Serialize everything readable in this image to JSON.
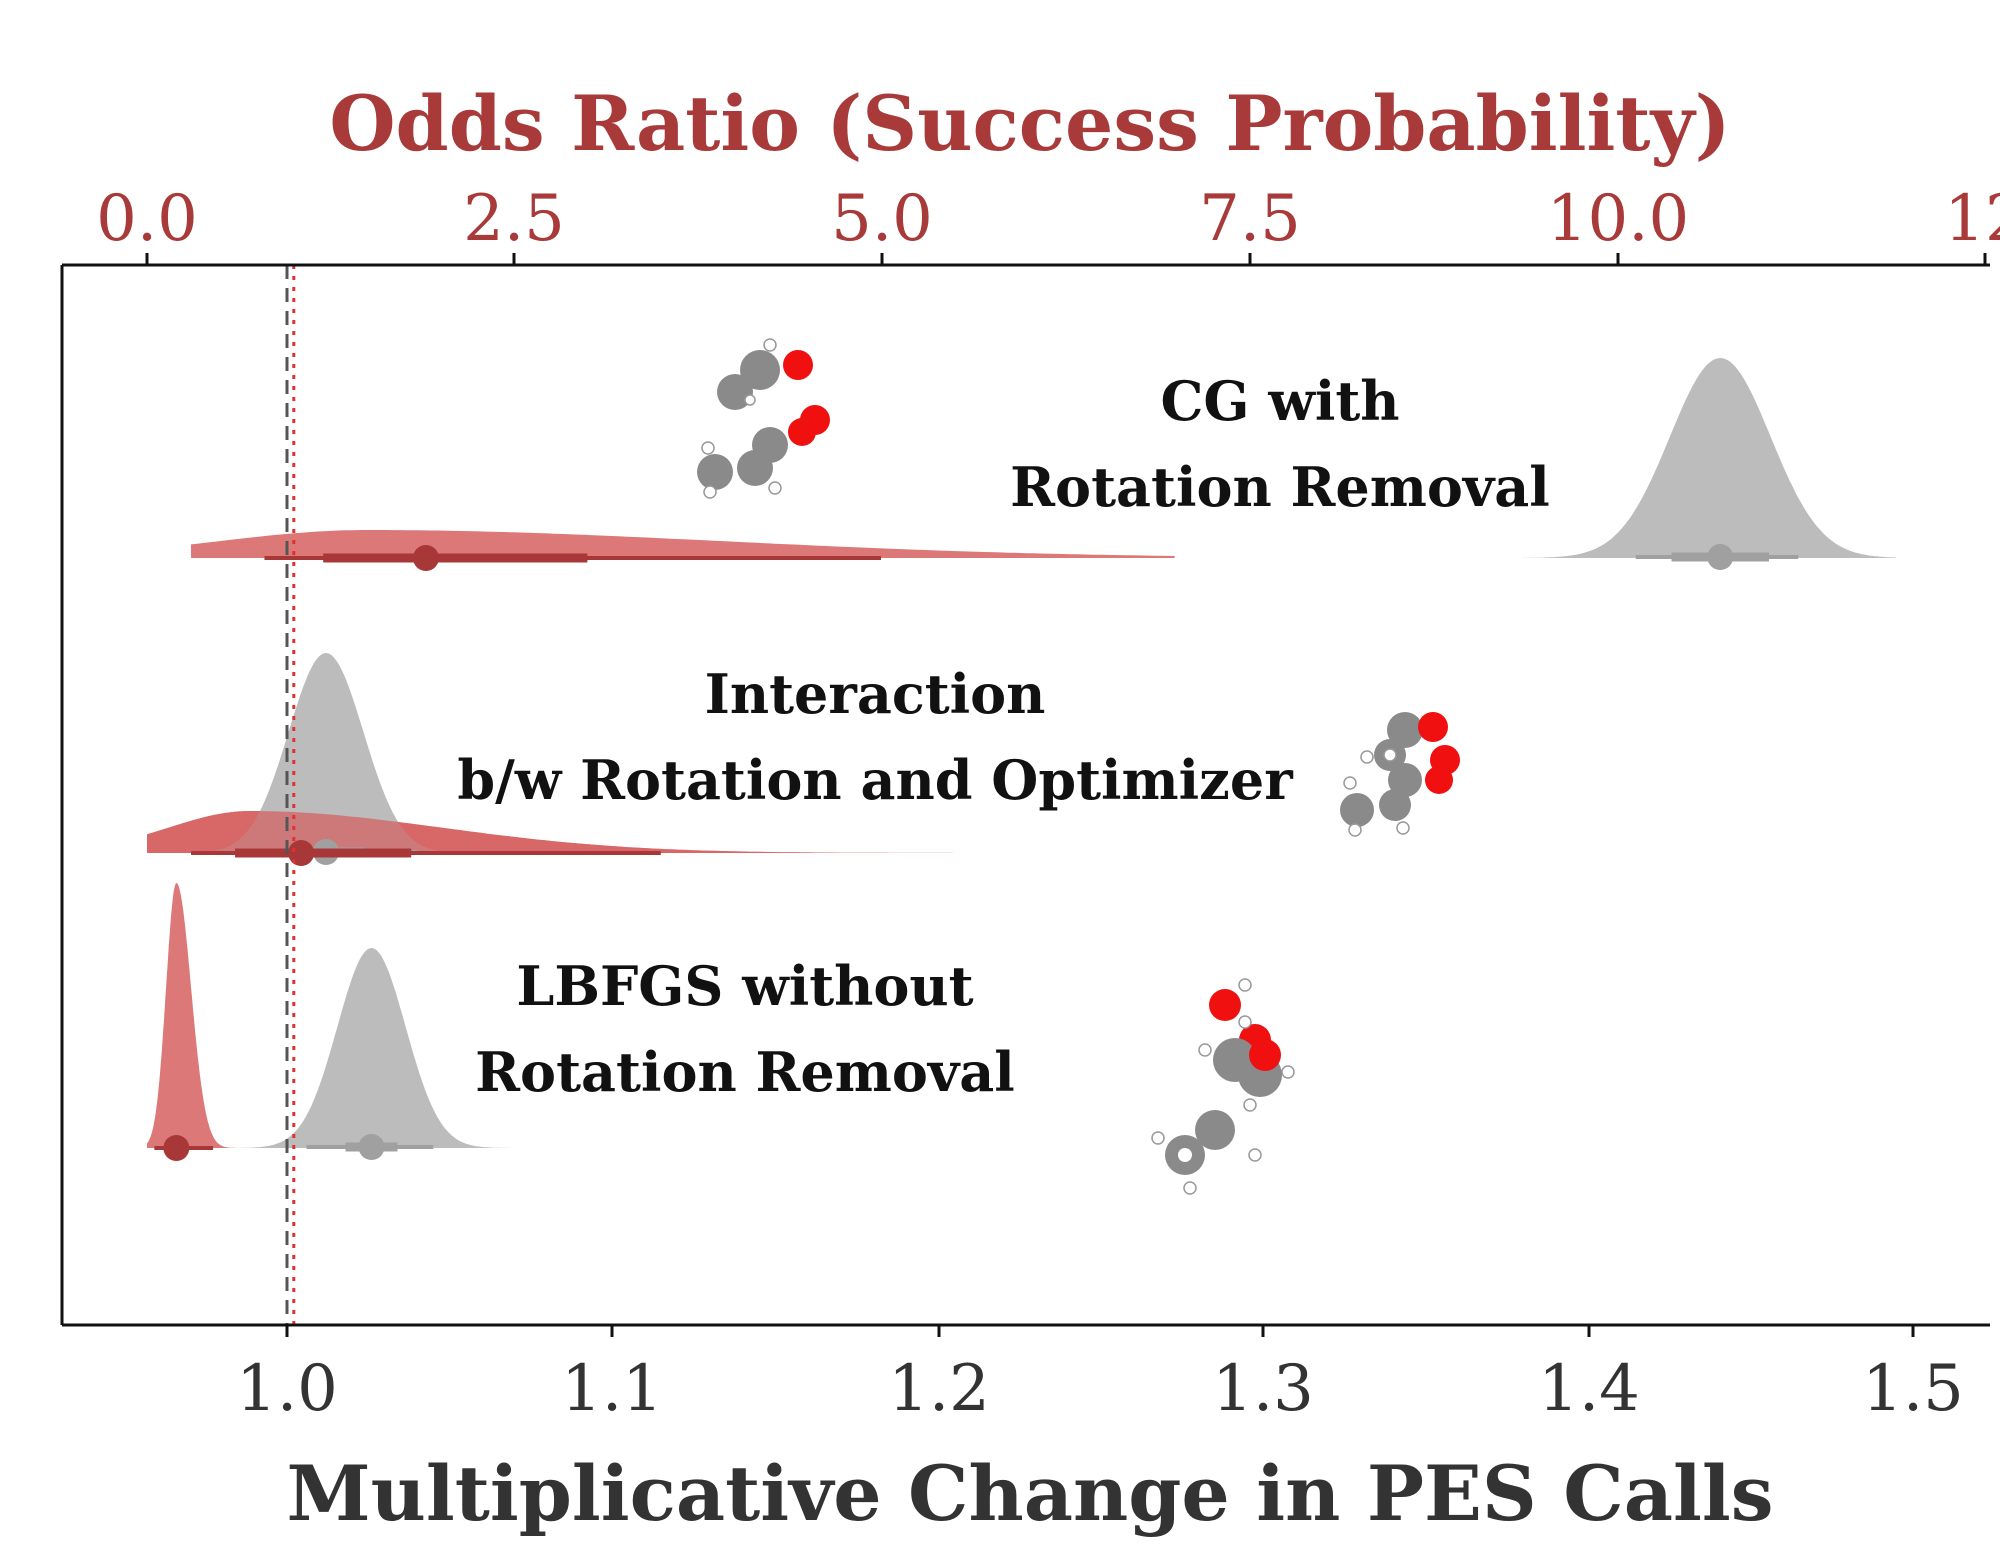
{
  "chart_data": {
    "type": "density-interval (raincloud / halfeye) plot",
    "top_axis": {
      "label": "Odds Ratio (Success Probability)",
      "ticks": [
        "0.0",
        "2.5",
        "5.0",
        "7.5",
        "10.0",
        "12"
      ],
      "range": [
        -0.5,
        12.0
      ],
      "color": "#a83a3a",
      "reference_line": 1.0
    },
    "bottom_axis": {
      "label": "Multiplicative Change in PES Calls",
      "ticks": [
        "1.0",
        "1.1",
        "1.2",
        "1.3",
        "1.4",
        "1.5"
      ],
      "range": [
        0.93,
        1.525
      ],
      "color": "#333333",
      "reference_line": 1.0
    },
    "series": [
      {
        "name": "PES calls (multiplicative change)",
        "color": "#b8b8b8",
        "axis": "bottom"
      },
      {
        "name": "Odds ratio (success probability)",
        "color": "#d66060",
        "axis": "top"
      }
    ],
    "rows": [
      {
        "label_lines": [
          "CG with",
          "Rotation Removal"
        ],
        "pes": {
          "median": 1.441,
          "sd": 0.0155,
          "hdi66": [
            1.426,
            1.456
          ],
          "hdi95": [
            1.415,
            1.465
          ],
          "tail": [
            1.38,
            1.495
          ]
        },
        "odds": {
          "median": 1.9,
          "mode": 1.5,
          "sdl": 1.0,
          "sdr": 2.4,
          "hdi66": [
            1.2,
            3.0
          ],
          "hdi95": [
            0.8,
            5.0
          ],
          "tail": [
            0.3,
            7.0
          ]
        }
      },
      {
        "label_lines": [
          "Interaction",
          "b/w Rotation and Optimizer"
        ],
        "pes": {
          "median": 1.012,
          "sd": 0.0115,
          "hdi66": [
            1.0,
            1.024
          ],
          "hdi95": [
            0.992,
            1.04
          ],
          "tail": [
            0.965,
            1.065
          ]
        },
        "odds": {
          "median": 1.05,
          "mode": 0.7,
          "sdl": 0.55,
          "sdr": 1.3,
          "hdi66": [
            0.6,
            1.8
          ],
          "hdi95": [
            0.3,
            3.5
          ],
          "tail": [
            0.0,
            7.0
          ]
        }
      },
      {
        "label_lines": [
          "LBFGS without",
          "Rotation Removal"
        ],
        "pes": {
          "median": 1.026,
          "sd": 0.0105,
          "hdi66": [
            1.018,
            1.034
          ],
          "hdi95": [
            1.006,
            1.045
          ],
          "tail": [
            0.985,
            1.07
          ]
        },
        "odds": {
          "median": 0.2,
          "mode": 0.2,
          "sdl": 0.07,
          "sdr": 0.1,
          "hdi66": [
            0.14,
            0.28
          ],
          "hdi95": [
            0.05,
            0.45
          ],
          "tail": [
            0.0,
            0.8
          ]
        }
      }
    ]
  },
  "colors": {
    "pes_fill": "#b8b8b8",
    "pes_mark": "#a0a0a0",
    "odds_fill": "#d66060",
    "odds_mark": "#a83838",
    "atom_carbon": "#8a8a8a",
    "atom_oxygen": "#f01010",
    "atom_hydrogen": "#ffffff"
  },
  "molecule_icons": [
    "molecule-icon",
    "molecule-icon",
    "molecule-icon"
  ]
}
